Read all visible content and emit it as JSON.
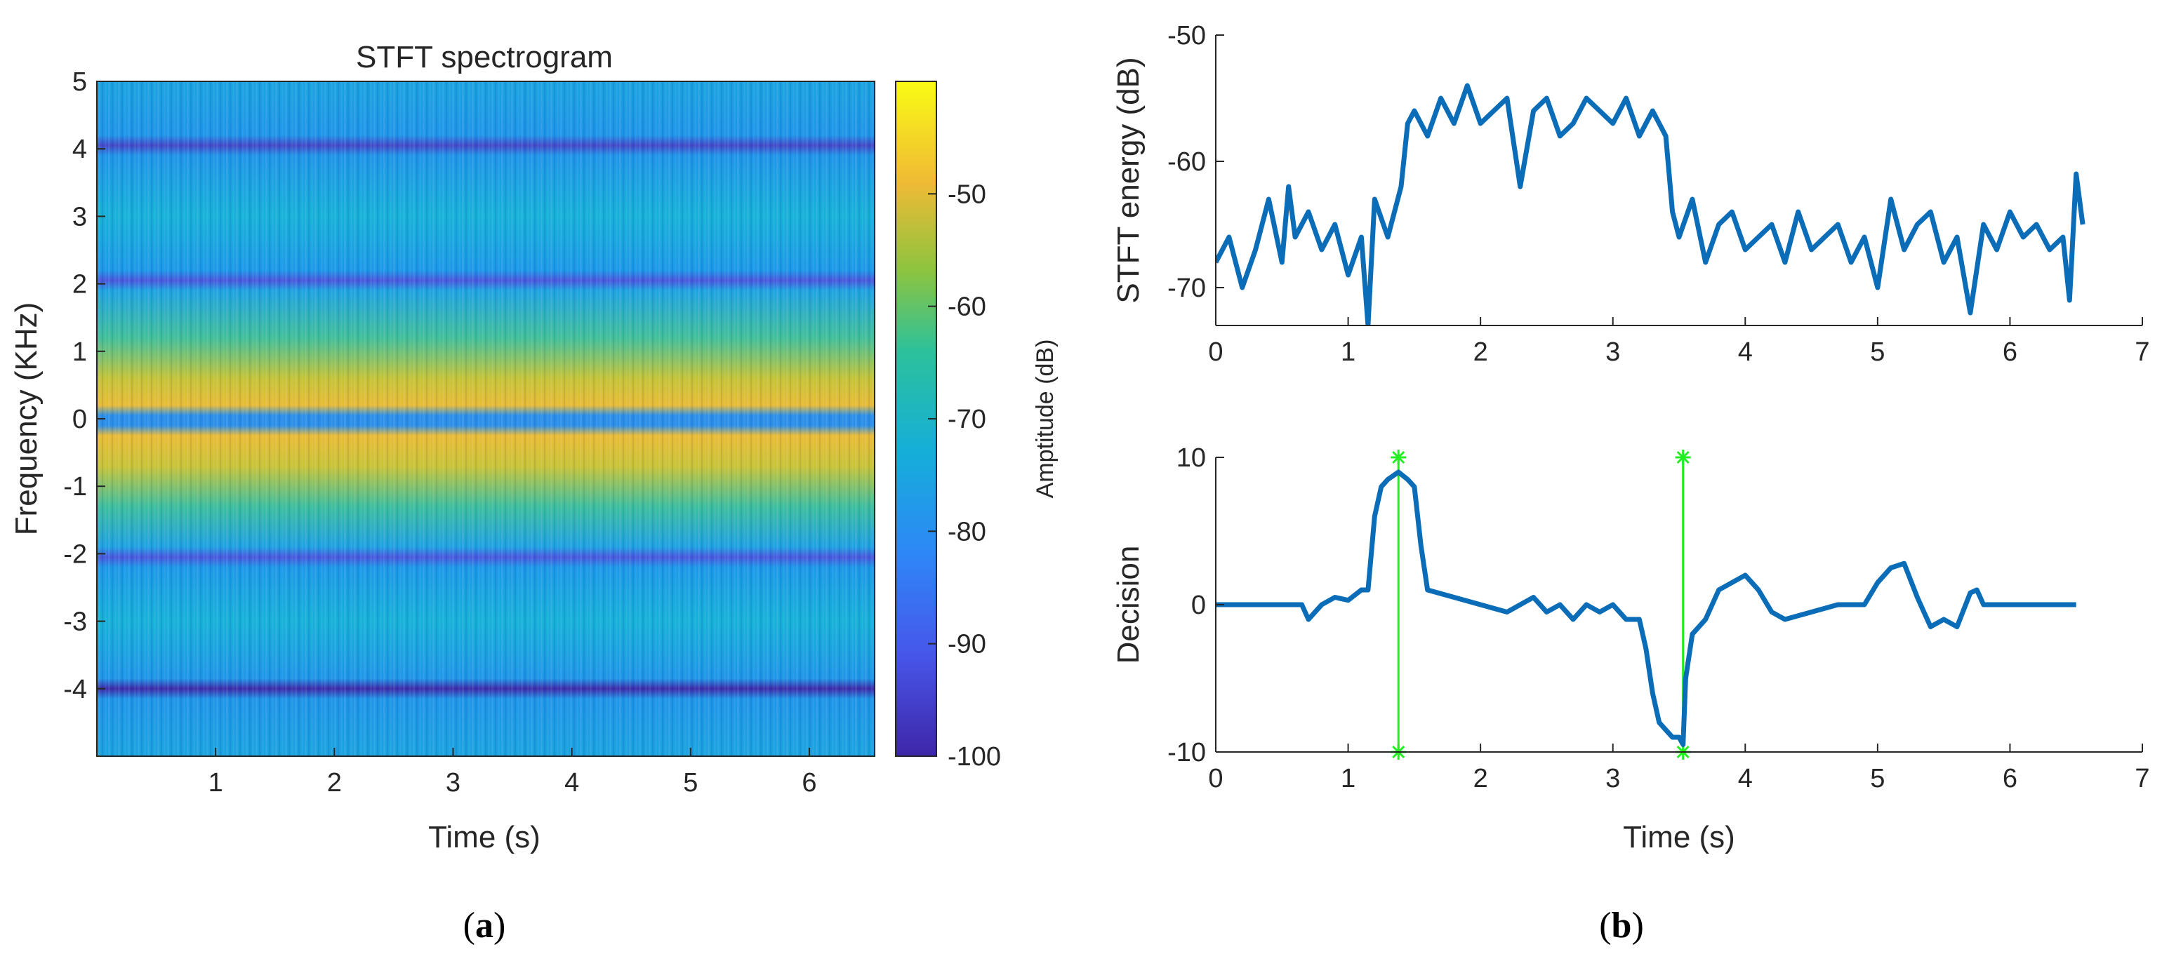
{
  "panels": {
    "a_label": "a",
    "b_label": "b"
  },
  "chart_data": [
    {
      "type": "heatmap",
      "title": "STFT spectrogram",
      "xlabel": "Time (s)",
      "ylabel": "Frequency (KHz)",
      "xlim": [
        0,
        6.55
      ],
      "ylim": [
        -5,
        5
      ],
      "xticks": [
        1,
        2,
        3,
        4,
        5,
        6
      ],
      "yticks": [
        5,
        4,
        3,
        2,
        1,
        0,
        -1,
        -2,
        -3,
        -4
      ],
      "colorbar": {
        "label": "Amptitude (dB)",
        "range": [
          -100,
          -40
        ],
        "ticks": [
          -50,
          -60,
          -70,
          -80,
          -90,
          -100
        ]
      },
      "bands": [
        {
          "freq": 4,
          "level_db": -95
        },
        {
          "freq": 2,
          "level_db": -95
        },
        {
          "freq": -2,
          "level_db": -95
        },
        {
          "freq": -4,
          "level_db": -98
        },
        {
          "freq": 0,
          "level_db": -80
        }
      ],
      "peak_region": {
        "freq_range": [
          -1,
          1
        ],
        "level_db": -52
      },
      "background_db": -72
    },
    {
      "type": "line",
      "xlabel": "",
      "ylabel": "STFT energy (dB)",
      "xlim": [
        0,
        7
      ],
      "ylim": [
        -73,
        -50
      ],
      "xticks": [
        0,
        1,
        2,
        3,
        4,
        5,
        6,
        7
      ],
      "yticks": [
        -50,
        -60,
        -70
      ],
      "series": [
        {
          "name": "STFT energy",
          "x": [
            0,
            0.1,
            0.2,
            0.3,
            0.4,
            0.5,
            0.55,
            0.6,
            0.7,
            0.8,
            0.9,
            1.0,
            1.1,
            1.15,
            1.2,
            1.3,
            1.4,
            1.45,
            1.5,
            1.6,
            1.7,
            1.8,
            1.9,
            2.0,
            2.1,
            2.2,
            2.3,
            2.4,
            2.5,
            2.6,
            2.7,
            2.8,
            2.9,
            3.0,
            3.1,
            3.2,
            3.3,
            3.35,
            3.4,
            3.45,
            3.5,
            3.6,
            3.7,
            3.8,
            3.9,
            4.0,
            4.1,
            4.2,
            4.3,
            4.4,
            4.5,
            4.6,
            4.7,
            4.8,
            4.9,
            5.0,
            5.1,
            5.2,
            5.3,
            5.4,
            5.5,
            5.6,
            5.7,
            5.8,
            5.9,
            6.0,
            6.1,
            6.2,
            6.3,
            6.4,
            6.45,
            6.5,
            6.55
          ],
          "y": [
            -68,
            -66,
            -70,
            -67,
            -63,
            -68,
            -62,
            -66,
            -64,
            -67,
            -65,
            -69,
            -66,
            -73,
            -63,
            -66,
            -62,
            -57,
            -56,
            -58,
            -55,
            -57,
            -54,
            -57,
            -56,
            -55,
            -62,
            -56,
            -55,
            -58,
            -57,
            -55,
            -56,
            -57,
            -55,
            -58,
            -56,
            -57,
            -58,
            -64,
            -66,
            -63,
            -68,
            -65,
            -64,
            -67,
            -66,
            -65,
            -68,
            -64,
            -67,
            -66,
            -65,
            -68,
            -66,
            -70,
            -63,
            -67,
            -65,
            -64,
            -68,
            -66,
            -72,
            -65,
            -67,
            -64,
            -66,
            -65,
            -67,
            -66,
            -71,
            -61,
            -65
          ]
        }
      ]
    },
    {
      "type": "line",
      "xlabel": "Time (s)",
      "ylabel": "Decision",
      "xlim": [
        0,
        7
      ],
      "ylim": [
        -10,
        10
      ],
      "xticks": [
        0,
        1,
        2,
        3,
        4,
        5,
        6,
        7
      ],
      "yticks": [
        10,
        0,
        -10
      ],
      "series": [
        {
          "name": "Decision",
          "x": [
            0,
            0.5,
            0.65,
            0.7,
            0.8,
            0.9,
            1.0,
            1.1,
            1.15,
            1.2,
            1.25,
            1.3,
            1.38,
            1.45,
            1.5,
            1.55,
            1.6,
            1.8,
            2.0,
            2.2,
            2.4,
            2.5,
            2.6,
            2.7,
            2.8,
            2.9,
            3.0,
            3.1,
            3.2,
            3.25,
            3.3,
            3.35,
            3.4,
            3.45,
            3.5,
            3.53,
            3.55,
            3.6,
            3.7,
            3.8,
            3.9,
            4.0,
            4.1,
            4.2,
            4.3,
            4.5,
            4.7,
            4.9,
            5.0,
            5.1,
            5.2,
            5.3,
            5.4,
            5.5,
            5.6,
            5.7,
            5.75,
            5.8,
            6.0,
            6.2,
            6.5
          ],
          "y": [
            0,
            0,
            0,
            -1,
            0,
            0.5,
            0.3,
            1,
            1,
            6,
            8,
            8.5,
            9,
            8.5,
            8,
            4,
            1,
            0.5,
            0,
            -0.5,
            0.5,
            -0.5,
            0,
            -1,
            0,
            -0.5,
            0,
            -1,
            -1,
            -3,
            -6,
            -8,
            -8.5,
            -9,
            -9,
            -9.5,
            -5,
            -2,
            -1,
            1,
            1.5,
            2,
            1,
            -0.5,
            -1,
            -0.5,
            0,
            0,
            1.5,
            2.5,
            2.8,
            0.5,
            -1.5,
            -1,
            -1.5,
            0.8,
            1,
            0,
            0,
            0,
            0
          ]
        },
        {
          "name": "Change points",
          "x": [
            1.38,
            3.53
          ],
          "y_range": [
            -10,
            10
          ],
          "color": "#22ee22"
        }
      ]
    }
  ]
}
